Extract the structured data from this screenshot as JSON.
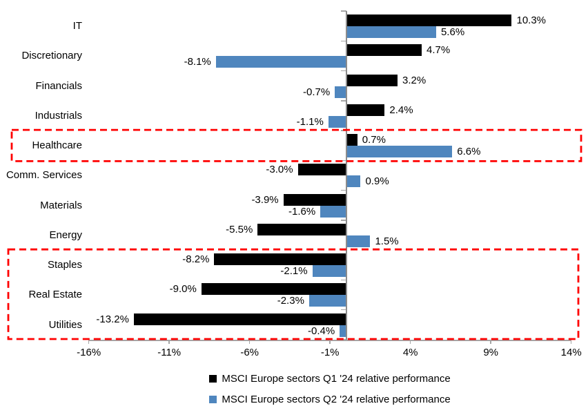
{
  "chart_data": {
    "type": "bar",
    "orientation": "horizontal",
    "title": "",
    "categories": [
      "IT",
      "Discretionary",
      "Financials",
      "Industrials",
      "Healthcare",
      "Comm. Services",
      "Materials",
      "Energy",
      "Staples",
      "Real Estate",
      "Utilities"
    ],
    "series": [
      {
        "key": "q1",
        "name": "MSCI Europe sectors Q1 '24 relative performance",
        "color": "#000000",
        "values": [
          10.3,
          4.7,
          3.2,
          2.4,
          0.7,
          -3.0,
          -3.9,
          -5.5,
          -8.2,
          -9.0,
          -13.2
        ],
        "labels": [
          "10.3%",
          "4.7%",
          "3.2%",
          "2.4%",
          "0.7%",
          "-3.0%",
          "-3.9%",
          "-5.5%",
          "-8.2%",
          "-9.0%",
          "-13.2%"
        ]
      },
      {
        "key": "q2",
        "name": "MSCI Europe sectors Q2 '24 relative performance",
        "color": "#4F86BE",
        "values": [
          5.6,
          -8.1,
          -0.7,
          -1.1,
          6.6,
          0.9,
          -1.6,
          1.5,
          -2.1,
          -2.3,
          -0.4
        ],
        "labels": [
          "5.6%",
          "-8.1%",
          "-0.7%",
          "-1.1%",
          "6.6%",
          "0.9%",
          "-1.6%",
          "1.5%",
          "-2.1%",
          "-2.3%",
          "-0.4%"
        ]
      }
    ],
    "x_axis": {
      "range": [
        -16,
        14
      ],
      "ticks": [
        {
          "value": -16,
          "label": "-16%"
        },
        {
          "value": -11,
          "label": "-11%"
        },
        {
          "value": -6,
          "label": "-6%"
        },
        {
          "value": -1,
          "label": "-1%"
        },
        {
          "value": 4,
          "label": "4%"
        },
        {
          "value": 9,
          "label": "9%"
        },
        {
          "value": 14,
          "label": "14%"
        }
      ]
    },
    "grid": false,
    "value_labels": true,
    "legend_position": "bottom",
    "axis_color": "#A6A6A6",
    "highlight_boxes": [
      {
        "categories": [
          "Healthcare"
        ],
        "color": "#FF0000",
        "style": "dashed"
      },
      {
        "categories": [
          "Staples",
          "Real Estate",
          "Utilities"
        ],
        "color": "#FF0000",
        "style": "dashed"
      }
    ]
  }
}
